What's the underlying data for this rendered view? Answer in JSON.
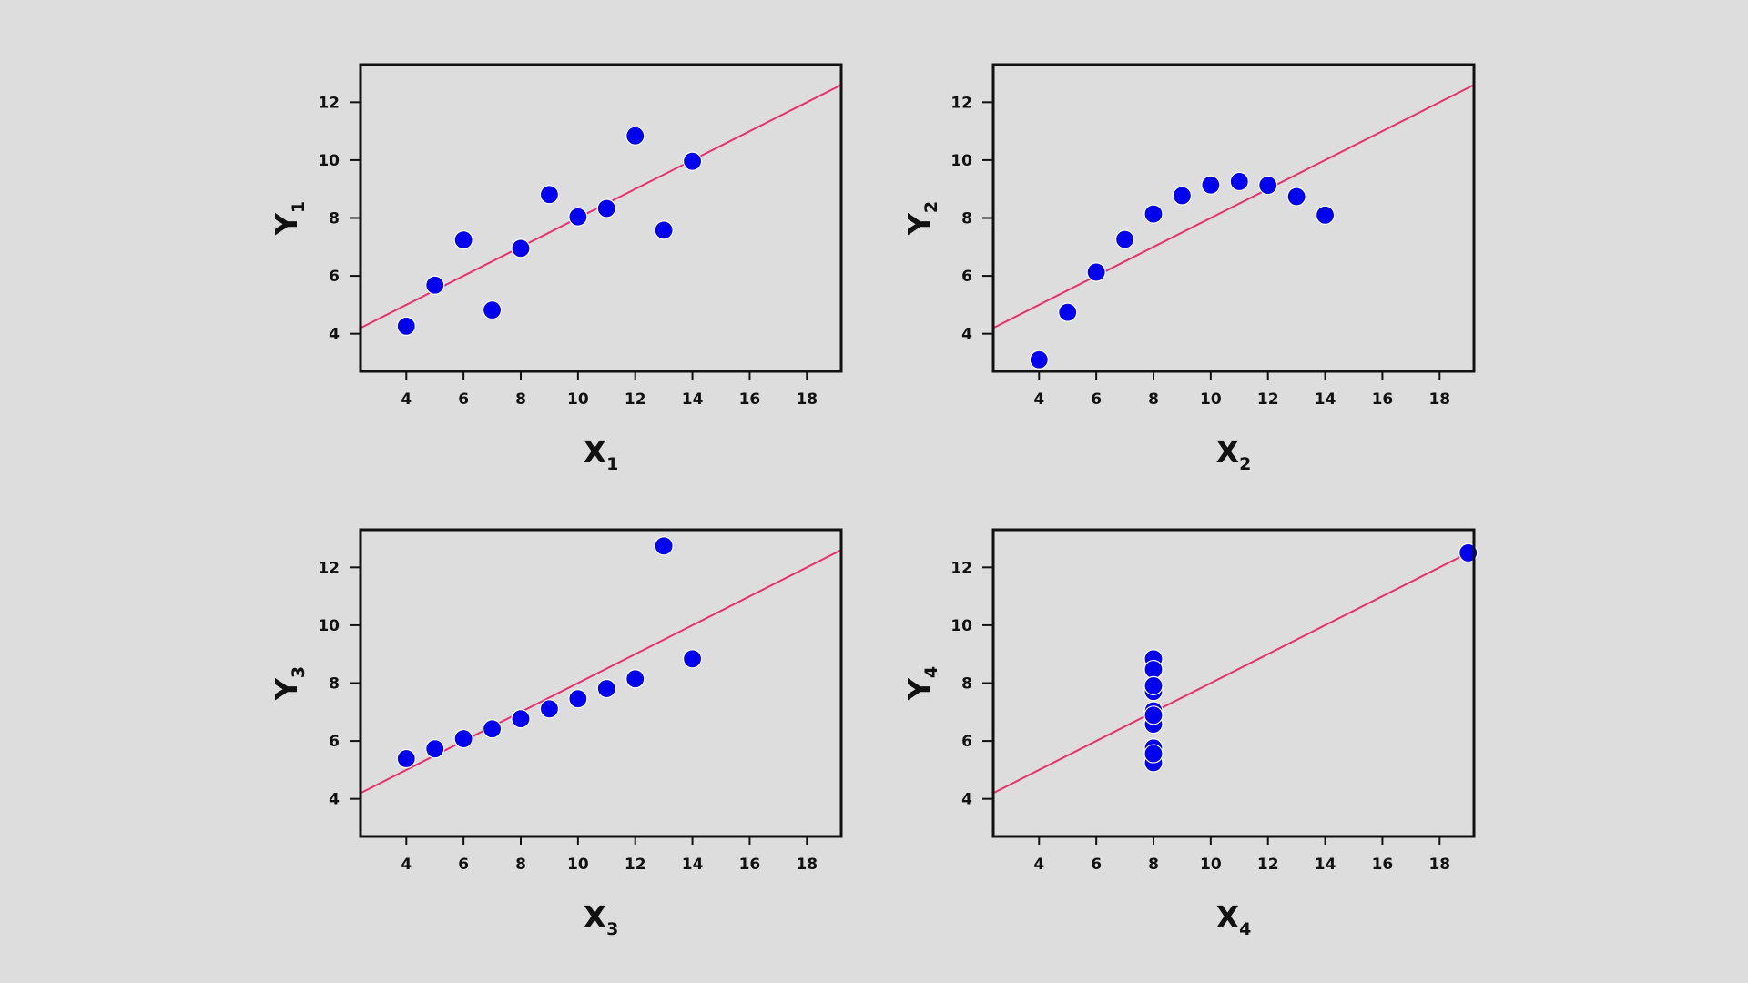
{
  "colors": {
    "background": "#dddddd",
    "point": "#0000ee",
    "point_stroke": "#ffffff",
    "fit_line": "#e8306a",
    "axis": "#111111"
  },
  "chart_data": [
    {
      "type": "scatter",
      "xlabel": "X",
      "xlabel_sub": "1",
      "ylabel": "Y",
      "ylabel_sub": "1",
      "xlim": [
        2.4,
        19.2
      ],
      "ylim": [
        2.7,
        13.3
      ],
      "xticks": [
        4,
        6,
        8,
        10,
        12,
        14,
        16,
        18
      ],
      "yticks": [
        4,
        6,
        8,
        10,
        12
      ],
      "grid": false,
      "points": [
        {
          "x": 10,
          "y": 8.04
        },
        {
          "x": 8,
          "y": 6.95
        },
        {
          "x": 13,
          "y": 7.58
        },
        {
          "x": 9,
          "y": 8.81
        },
        {
          "x": 11,
          "y": 8.33
        },
        {
          "x": 14,
          "y": 9.96
        },
        {
          "x": 6,
          "y": 7.24
        },
        {
          "x": 4,
          "y": 4.26
        },
        {
          "x": 12,
          "y": 10.84
        },
        {
          "x": 7,
          "y": 4.82
        },
        {
          "x": 5,
          "y": 5.68
        }
      ],
      "fit_line": {
        "intercept": 3.0,
        "slope": 0.5
      }
    },
    {
      "type": "scatter",
      "xlabel": "X",
      "xlabel_sub": "2",
      "ylabel": "Y",
      "ylabel_sub": "2",
      "xlim": [
        2.4,
        19.2
      ],
      "ylim": [
        2.7,
        13.3
      ],
      "xticks": [
        4,
        6,
        8,
        10,
        12,
        14,
        16,
        18
      ],
      "yticks": [
        4,
        6,
        8,
        10,
        12
      ],
      "grid": false,
      "points": [
        {
          "x": 10,
          "y": 9.14
        },
        {
          "x": 8,
          "y": 8.14
        },
        {
          "x": 13,
          "y": 8.74
        },
        {
          "x": 9,
          "y": 8.77
        },
        {
          "x": 11,
          "y": 9.26
        },
        {
          "x": 14,
          "y": 8.1
        },
        {
          "x": 6,
          "y": 6.13
        },
        {
          "x": 4,
          "y": 3.1
        },
        {
          "x": 12,
          "y": 9.13
        },
        {
          "x": 7,
          "y": 7.26
        },
        {
          "x": 5,
          "y": 4.74
        }
      ],
      "fit_line": {
        "intercept": 3.0,
        "slope": 0.5
      }
    },
    {
      "type": "scatter",
      "xlabel": "X",
      "xlabel_sub": "3",
      "ylabel": "Y",
      "ylabel_sub": "3",
      "xlim": [
        2.4,
        19.2
      ],
      "ylim": [
        2.7,
        13.3
      ],
      "xticks": [
        4,
        6,
        8,
        10,
        12,
        14,
        16,
        18
      ],
      "yticks": [
        4,
        6,
        8,
        10,
        12
      ],
      "grid": false,
      "points": [
        {
          "x": 10,
          "y": 7.46
        },
        {
          "x": 8,
          "y": 6.77
        },
        {
          "x": 13,
          "y": 12.74
        },
        {
          "x": 9,
          "y": 7.11
        },
        {
          "x": 11,
          "y": 7.81
        },
        {
          "x": 14,
          "y": 8.84
        },
        {
          "x": 6,
          "y": 6.08
        },
        {
          "x": 4,
          "y": 5.39
        },
        {
          "x": 12,
          "y": 8.15
        },
        {
          "x": 7,
          "y": 6.42
        },
        {
          "x": 5,
          "y": 5.73
        }
      ],
      "fit_line": {
        "intercept": 3.0,
        "slope": 0.5
      }
    },
    {
      "type": "scatter",
      "xlabel": "X",
      "xlabel_sub": "4",
      "ylabel": "Y",
      "ylabel_sub": "4",
      "xlim": [
        2.4,
        19.2
      ],
      "ylim": [
        2.7,
        13.3
      ],
      "xticks": [
        4,
        6,
        8,
        10,
        12,
        14,
        16,
        18
      ],
      "yticks": [
        4,
        6,
        8,
        10,
        12
      ],
      "grid": false,
      "points": [
        {
          "x": 8,
          "y": 6.58
        },
        {
          "x": 8,
          "y": 5.76
        },
        {
          "x": 8,
          "y": 7.71
        },
        {
          "x": 8,
          "y": 8.84
        },
        {
          "x": 8,
          "y": 8.47
        },
        {
          "x": 8,
          "y": 7.04
        },
        {
          "x": 8,
          "y": 5.25
        },
        {
          "x": 19,
          "y": 12.5
        },
        {
          "x": 8,
          "y": 5.56
        },
        {
          "x": 8,
          "y": 7.91
        },
        {
          "x": 8,
          "y": 6.89
        }
      ],
      "fit_line": {
        "intercept": 3.0,
        "slope": 0.5
      }
    }
  ]
}
